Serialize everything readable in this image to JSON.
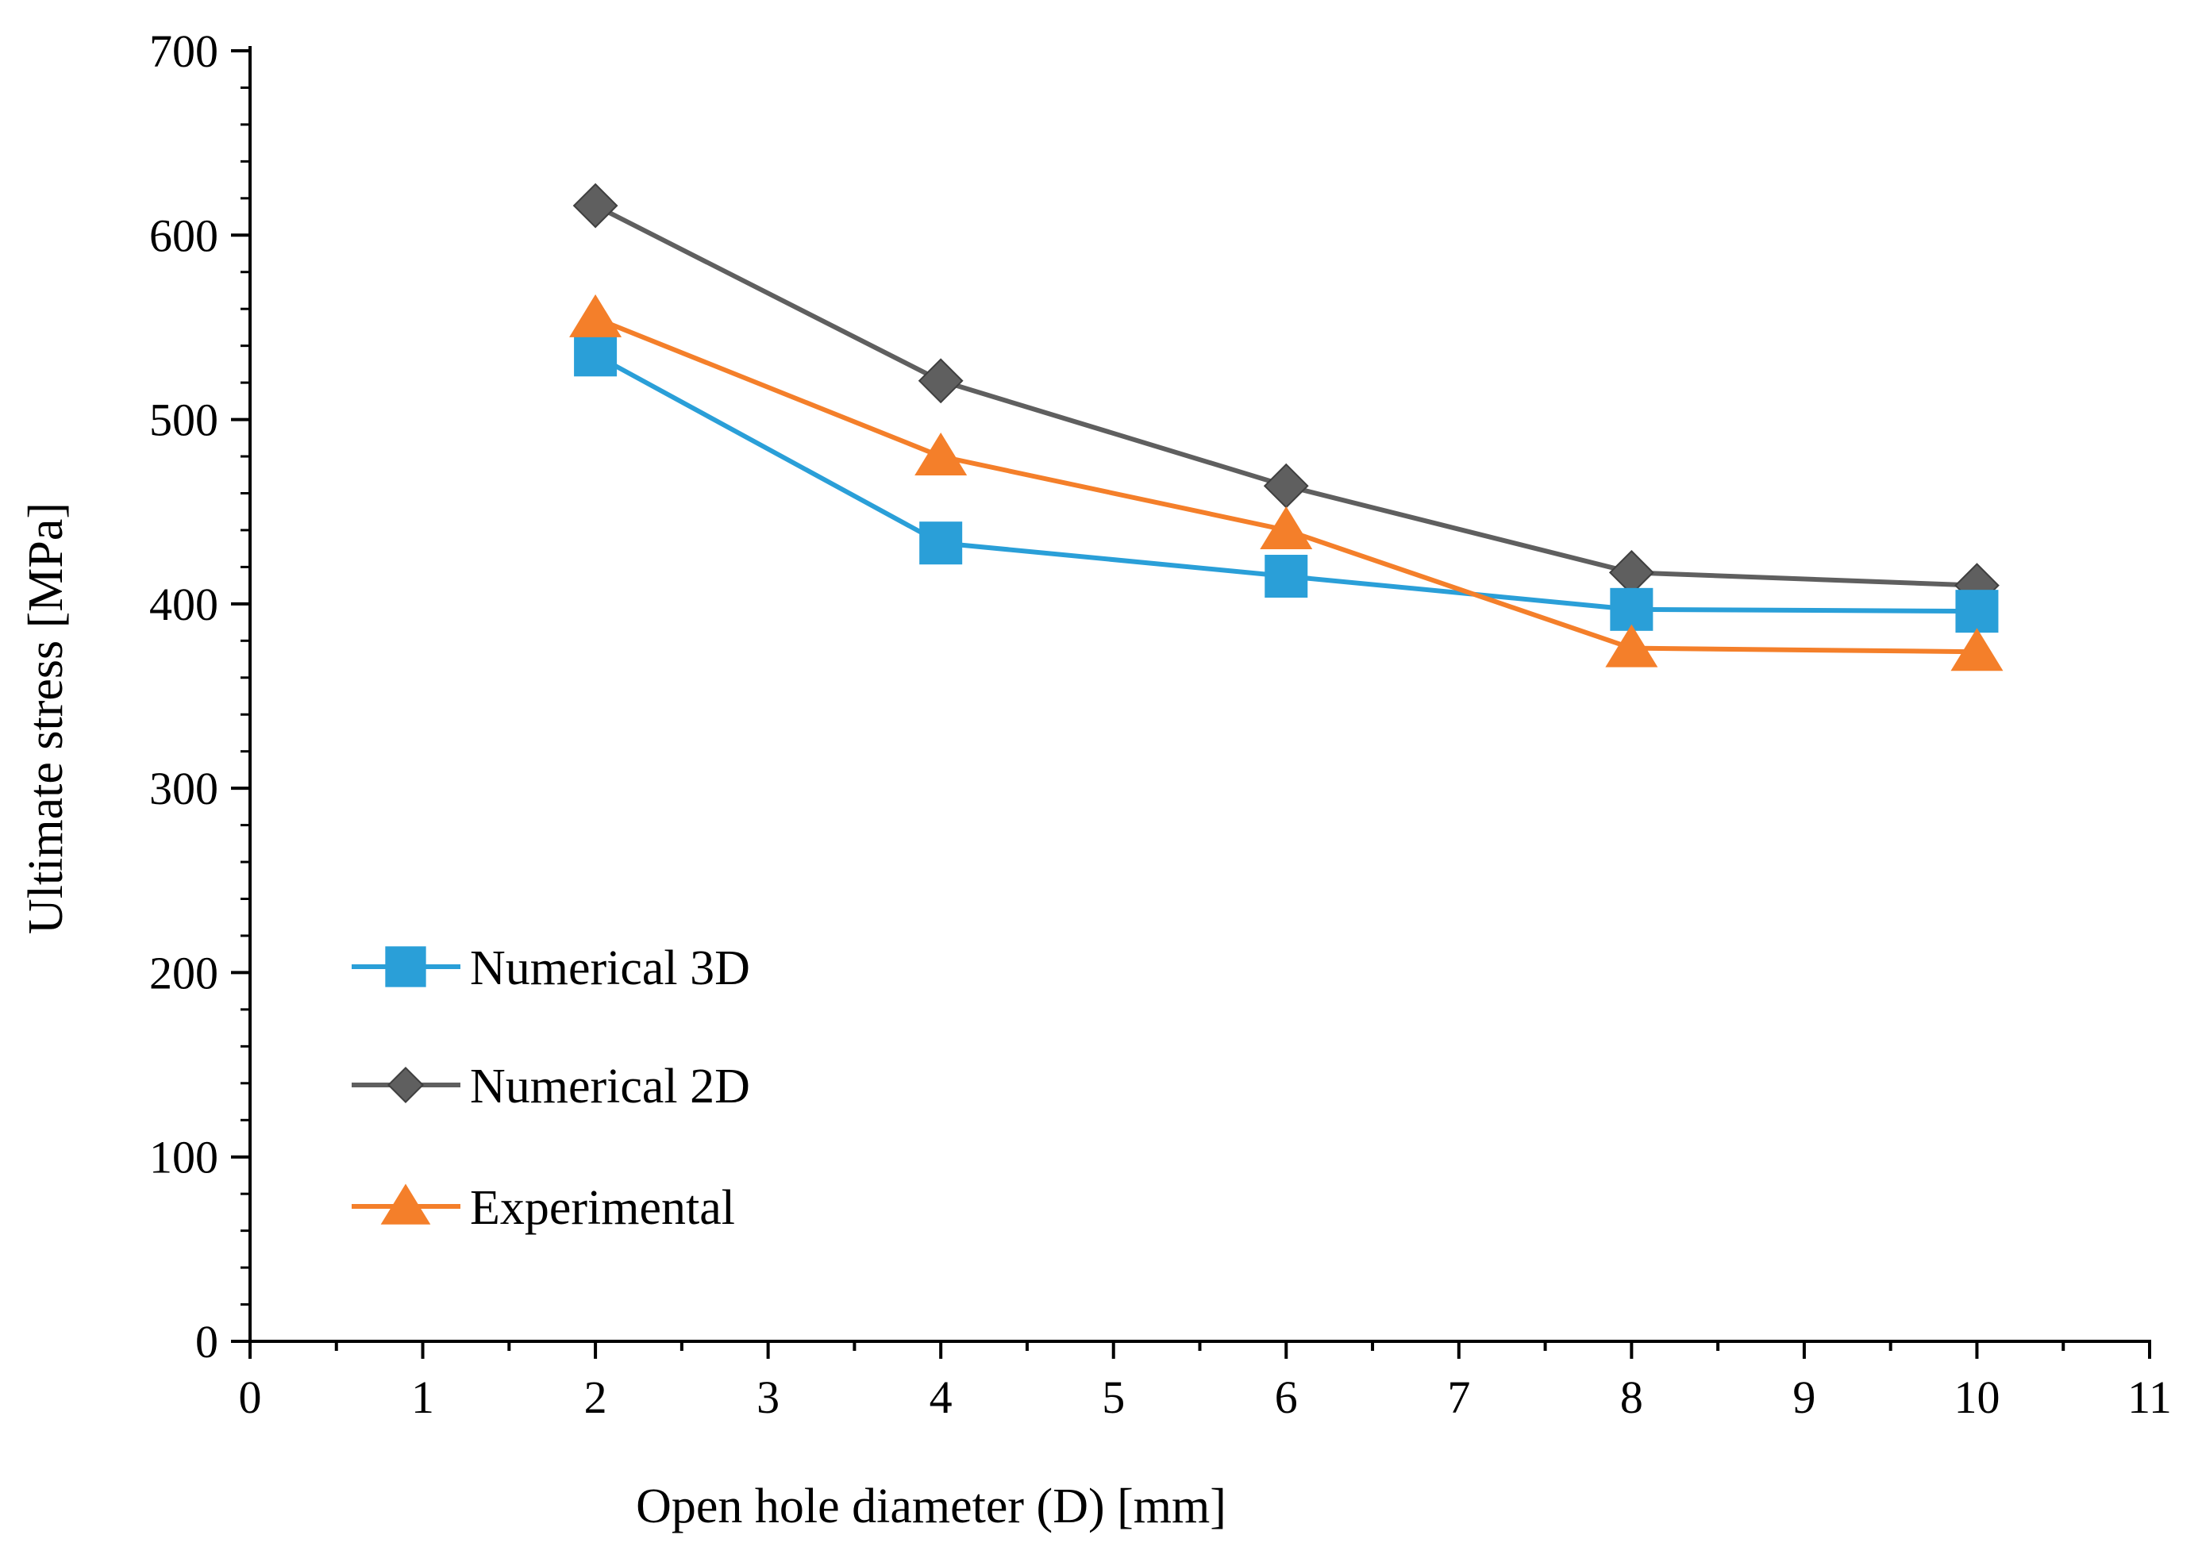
{
  "chart_data": {
    "type": "line",
    "title": "",
    "xlabel": "Open hole diameter (D) [mm]",
    "ylabel": "Ultimate  stress [MPa]",
    "xlim": [
      0,
      11
    ],
    "ylim": [
      0,
      700
    ],
    "x_ticks": [
      "0",
      "1",
      "2",
      "3",
      "4",
      "5",
      "6",
      "7",
      "8",
      "9",
      "10",
      "11"
    ],
    "y_ticks": [
      "0",
      "100",
      "200",
      "300",
      "400",
      "500",
      "600",
      "700"
    ],
    "x_tick_values": [
      0,
      1,
      2,
      3,
      4,
      5,
      6,
      7,
      8,
      9,
      10,
      11
    ],
    "y_tick_values": [
      0,
      100,
      200,
      300,
      400,
      500,
      600,
      700
    ],
    "x_minor_step": 0.5,
    "y_minor_step": 20,
    "grid": false,
    "legend_position": "left-lower",
    "x": [
      2,
      4,
      6,
      8,
      10
    ],
    "series": [
      {
        "name": "Numerical 3D",
        "marker": "square",
        "color": "#2a9fd8",
        "values": [
          535,
          433,
          415,
          397,
          396
        ]
      },
      {
        "name": "Numerical 2D",
        "marker": "diamond",
        "color": "#5f5f5f",
        "values": [
          616,
          521,
          464,
          417,
          410
        ]
      },
      {
        "name": "Experimental",
        "marker": "triangle",
        "color": "#f47f2a",
        "values": [
          555,
          480,
          440,
          376,
          374
        ]
      }
    ]
  }
}
